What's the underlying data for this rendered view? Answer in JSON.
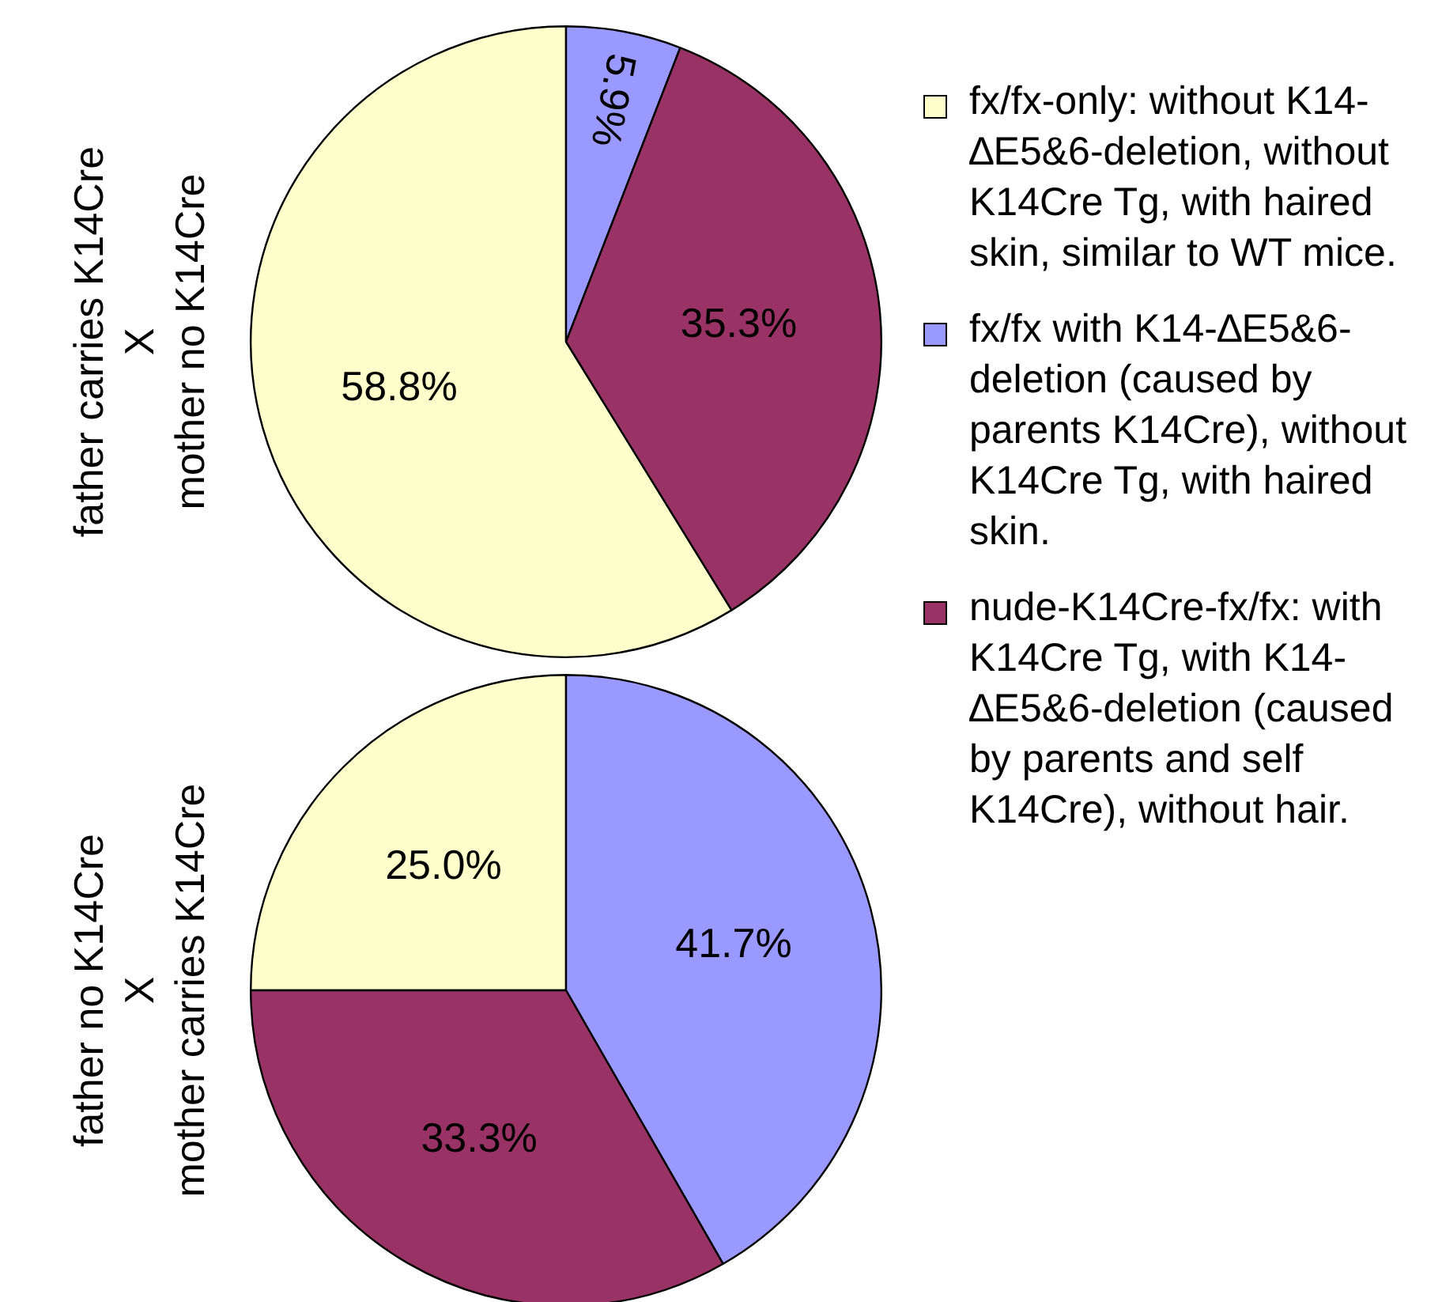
{
  "chart_data": [
    {
      "type": "pie",
      "ylabel": "father carries K14Cre\nX\nmother no K14Cre",
      "categories": [
        "fx/fx-only: without K14-∆E5&6-deletion, without K14Cre Tg, with haired skin, similar to WT mice.",
        "fx/fx with K14-∆E5&6-deletion (caused by parents K14Cre), without K14Cre Tg, with haired skin.",
        "nude-K14Cre-fx/fx: with K14Cre Tg, with K14-∆E5&6-deletion (caused by parents and self K14Cre), without hair."
      ],
      "values": [
        58.8,
        5.9,
        35.3
      ],
      "value_labels": [
        "58.8%",
        "5.9%",
        "35.3%"
      ],
      "colors": [
        "#ffffcc",
        "#9999ff",
        "#993366"
      ],
      "legend": "right"
    },
    {
      "type": "pie",
      "ylabel": "father no K14Cre\nX\nmother carries K14Cre",
      "categories": [
        null,
        null,
        null
      ],
      "values": [
        25.0,
        41.7,
        33.3
      ],
      "value_labels": [
        "25.0%",
        "41.7%",
        "33.3%"
      ],
      "colors": [
        "#ffffcc",
        "#9999ff",
        "#993366"
      ]
    }
  ]
}
